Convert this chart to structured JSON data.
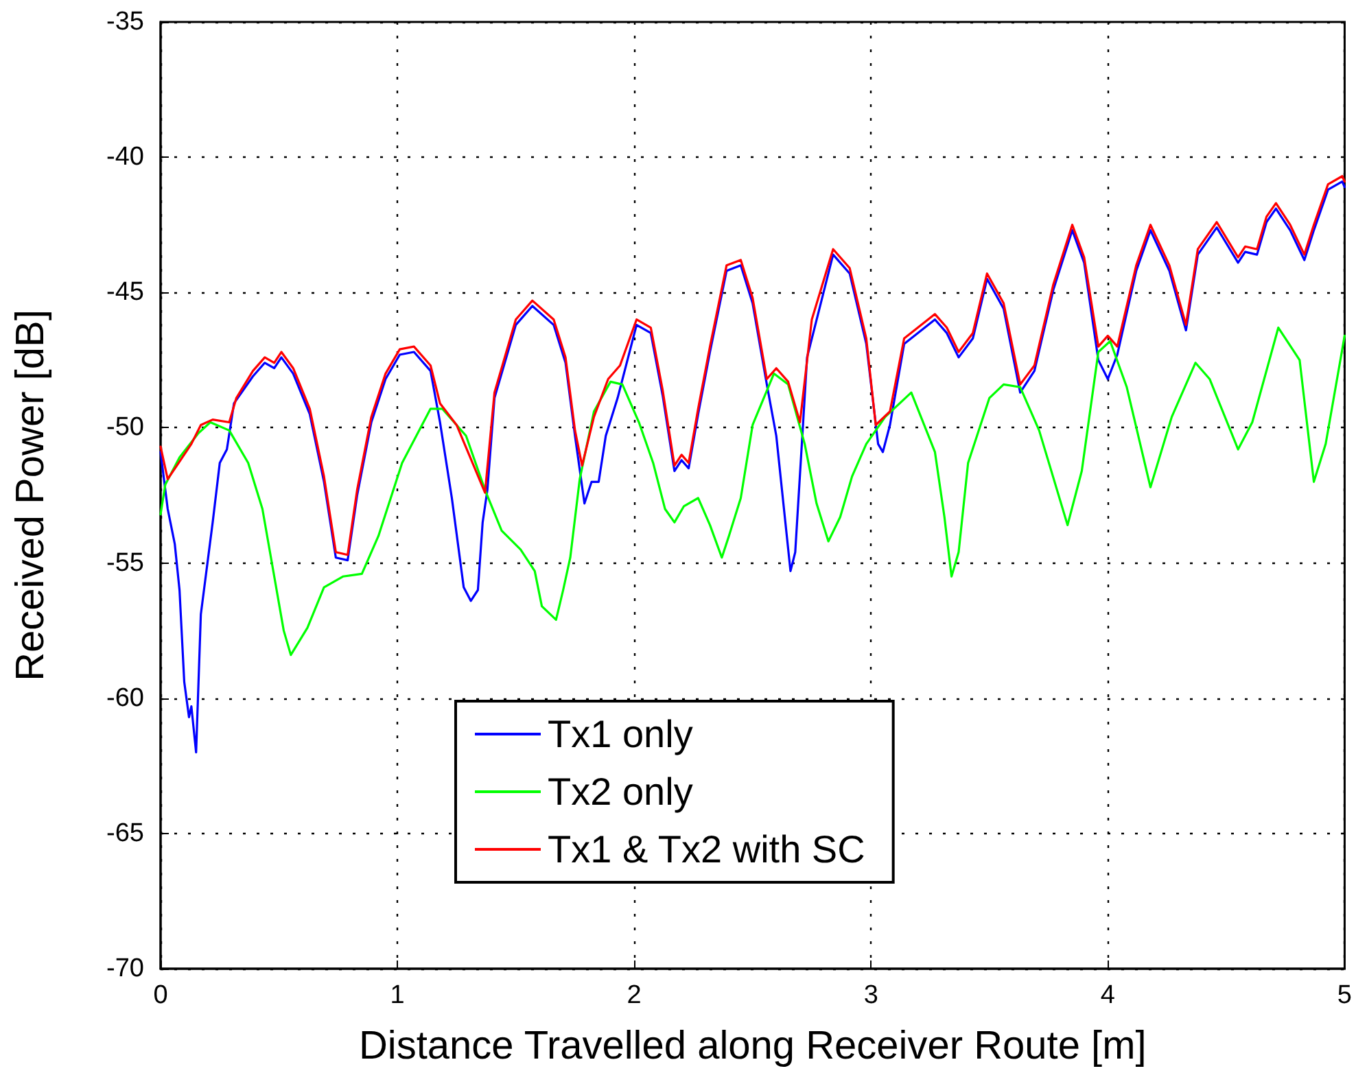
{
  "chart_data": {
    "type": "line",
    "xlabel": "Distance Travelled along Receiver Route [m]",
    "ylabel": "Received Power [dB]",
    "xlim": [
      0,
      5
    ],
    "xticks": [
      0,
      1,
      2,
      3,
      4,
      5
    ],
    "ylim": [
      -70,
      -35
    ],
    "yticks": [
      -70,
      -65,
      -60,
      -55,
      -50,
      -45,
      -40,
      -35
    ],
    "grid": true,
    "legend": "bottom",
    "marker": "none",
    "line_style": "solid",
    "series": [
      {
        "name": "Tx1 only",
        "color": "#0000ff",
        "x": [
          0,
          0.03,
          0.06,
          0.08,
          0.1,
          0.12,
          0.13,
          0.15,
          0.17,
          0.22,
          0.25,
          0.28,
          0.31,
          0.39,
          0.44,
          0.48,
          0.51,
          0.56,
          0.63,
          0.69,
          0.74,
          0.79,
          0.83,
          0.89,
          0.95,
          1.01,
          1.07,
          1.14,
          1.18,
          1.23,
          1.28,
          1.31,
          1.34,
          1.36,
          1.38,
          1.41,
          1.5,
          1.57,
          1.66,
          1.71,
          1.75,
          1.79,
          1.82,
          1.85,
          1.88,
          1.93,
          2.01,
          2.07,
          2.12,
          2.17,
          2.2,
          2.23,
          2.27,
          2.32,
          2.39,
          2.45,
          2.5,
          2.56,
          2.6,
          2.63,
          2.66,
          2.68,
          2.71,
          2.73,
          2.84,
          2.91,
          2.98,
          3.03,
          3.05,
          3.08,
          3.14,
          3.27,
          3.32,
          3.37,
          3.43,
          3.49,
          3.56,
          3.63,
          3.69,
          3.77,
          3.85,
          3.9,
          3.96,
          4,
          4.04,
          4.12,
          4.18,
          4.26,
          4.33,
          4.38,
          4.46,
          4.55,
          4.58,
          4.63,
          4.67,
          4.71,
          4.77,
          4.83,
          4.87,
          4.93,
          4.99,
          5
        ],
        "values": [
          -50.9,
          -53,
          -54.3,
          -56,
          -59.4,
          -60.7,
          -60.3,
          -62,
          -56.9,
          -53.5,
          -51.3,
          -50.8,
          -49.1,
          -48.1,
          -47.6,
          -47.8,
          -47.4,
          -48,
          -49.5,
          -52,
          -54.8,
          -54.9,
          -52.5,
          -49.8,
          -48.2,
          -47.3,
          -47.2,
          -47.9,
          -49.8,
          -52.6,
          -55.9,
          -56.4,
          -56,
          -53.5,
          -52.3,
          -48.9,
          -46.2,
          -45.5,
          -46.2,
          -47.6,
          -50.3,
          -52.8,
          -52,
          -52,
          -50.3,
          -48.9,
          -46.2,
          -46.5,
          -48.8,
          -51.6,
          -51.2,
          -51.5,
          -49.5,
          -47.2,
          -44.2,
          -44,
          -45.4,
          -48.4,
          -50.3,
          -52.8,
          -55.3,
          -54.6,
          -50.3,
          -47.4,
          -43.6,
          -44.3,
          -46.9,
          -50.6,
          -50.9,
          -49.9,
          -46.9,
          -46,
          -46.5,
          -47.4,
          -46.7,
          -44.5,
          -45.6,
          -48.7,
          -47.9,
          -44.9,
          -42.7,
          -43.9,
          -47.5,
          -48.2,
          -47.3,
          -44.2,
          -42.7,
          -44.2,
          -46.4,
          -43.6,
          -42.6,
          -43.9,
          -43.5,
          -43.6,
          -42.4,
          -41.9,
          -42.7,
          -43.8,
          -42.7,
          -41.2,
          -40.9,
          -41.1
        ]
      },
      {
        "name": "Tx2 only",
        "color": "#00ff00",
        "x": [
          0,
          0.02,
          0.08,
          0.16,
          0.21,
          0.29,
          0.37,
          0.43,
          0.48,
          0.52,
          0.55,
          0.62,
          0.69,
          0.77,
          0.85,
          0.92,
          1.02,
          1.14,
          1.19,
          1.29,
          1.37,
          1.44,
          1.52,
          1.58,
          1.61,
          1.67,
          1.7,
          1.73,
          1.77,
          1.83,
          1.9,
          1.95,
          2.02,
          2.08,
          2.13,
          2.17,
          2.21,
          2.27,
          2.32,
          2.37,
          2.4,
          2.45,
          2.5,
          2.59,
          2.65,
          2.72,
          2.77,
          2.82,
          2.87,
          2.92,
          2.98,
          3.06,
          3.17,
          3.27,
          3.31,
          3.34,
          3.37,
          3.41,
          3.5,
          3.56,
          3.63,
          3.71,
          3.83,
          3.89,
          3.96,
          4.01,
          4.08,
          4.18,
          4.27,
          4.37,
          4.43,
          4.55,
          4.61,
          4.72,
          4.81,
          4.87,
          4.92,
          5
        ],
        "values": [
          -53.2,
          -52.1,
          -51.1,
          -50.2,
          -49.8,
          -50.1,
          -51.3,
          -53,
          -55.5,
          -57.5,
          -58.4,
          -57.4,
          -55.9,
          -55.5,
          -55.4,
          -54,
          -51.3,
          -49.3,
          -49.3,
          -50.3,
          -52.3,
          -53.8,
          -54.5,
          -55.3,
          -56.6,
          -57.1,
          -56,
          -54.8,
          -51.9,
          -49.4,
          -48.3,
          -48.4,
          -49.8,
          -51.3,
          -53,
          -53.5,
          -52.9,
          -52.6,
          -53.6,
          -54.8,
          -54,
          -52.6,
          -49.9,
          -48,
          -48.4,
          -50.6,
          -52.8,
          -54.2,
          -53.3,
          -51.8,
          -50.6,
          -49.6,
          -48.7,
          -50.9,
          -53.3,
          -55.5,
          -54.6,
          -51.3,
          -48.9,
          -48.4,
          -48.5,
          -50.1,
          -53.6,
          -51.6,
          -47.2,
          -46.8,
          -48.5,
          -52.2,
          -49.6,
          -47.6,
          -48.2,
          -50.8,
          -49.8,
          -46.3,
          -47.5,
          -52,
          -50.6,
          -46.6
        ]
      },
      {
        "name": "Tx1 & Tx2 with SC",
        "color": "#ff0000",
        "x": [
          0,
          0.03,
          0.13,
          0.17,
          0.22,
          0.29,
          0.32,
          0.39,
          0.44,
          0.48,
          0.51,
          0.56,
          0.63,
          0.69,
          0.74,
          0.79,
          0.83,
          0.89,
          0.95,
          1.01,
          1.07,
          1.14,
          1.18,
          1.25,
          1.37,
          1.41,
          1.5,
          1.57,
          1.66,
          1.71,
          1.75,
          1.78,
          1.83,
          1.89,
          1.94,
          2.01,
          2.07,
          2.12,
          2.17,
          2.2,
          2.23,
          2.27,
          2.32,
          2.39,
          2.45,
          2.5,
          2.56,
          2.6,
          2.65,
          2.7,
          2.75,
          2.84,
          2.91,
          2.98,
          3.02,
          3.08,
          3.14,
          3.27,
          3.32,
          3.37,
          3.43,
          3.49,
          3.56,
          3.63,
          3.69,
          3.77,
          3.85,
          3.9,
          3.96,
          4,
          4.04,
          4.12,
          4.18,
          4.26,
          4.33,
          4.38,
          4.46,
          4.55,
          4.58,
          4.63,
          4.67,
          4.71,
          4.77,
          4.83,
          4.87,
          4.93,
          4.99,
          5
        ],
        "values": [
          -50.7,
          -51.9,
          -50.6,
          -49.9,
          -49.7,
          -49.8,
          -48.9,
          -47.9,
          -47.4,
          -47.6,
          -47.2,
          -47.8,
          -49.3,
          -51.8,
          -54.6,
          -54.7,
          -52.3,
          -49.6,
          -48,
          -47.1,
          -47,
          -47.7,
          -49.1,
          -49.9,
          -52.4,
          -48.7,
          -46,
          -45.3,
          -46,
          -47.4,
          -50.1,
          -51.4,
          -49.6,
          -48.2,
          -47.7,
          -46,
          -46.3,
          -48.6,
          -51.4,
          -51,
          -51.3,
          -49.3,
          -47,
          -44,
          -43.8,
          -45.2,
          -48.2,
          -47.8,
          -48.3,
          -49.8,
          -46,
          -43.4,
          -44.1,
          -46.7,
          -49.9,
          -49.4,
          -46.7,
          -45.8,
          -46.3,
          -47.2,
          -46.5,
          -44.3,
          -45.4,
          -48.4,
          -47.7,
          -44.7,
          -42.5,
          -43.7,
          -47,
          -46.6,
          -47,
          -44,
          -42.5,
          -44,
          -46.2,
          -43.4,
          -42.4,
          -43.7,
          -43.3,
          -43.4,
          -42.2,
          -41.7,
          -42.5,
          -43.6,
          -42.5,
          -41,
          -40.7,
          -40.9
        ]
      }
    ]
  }
}
